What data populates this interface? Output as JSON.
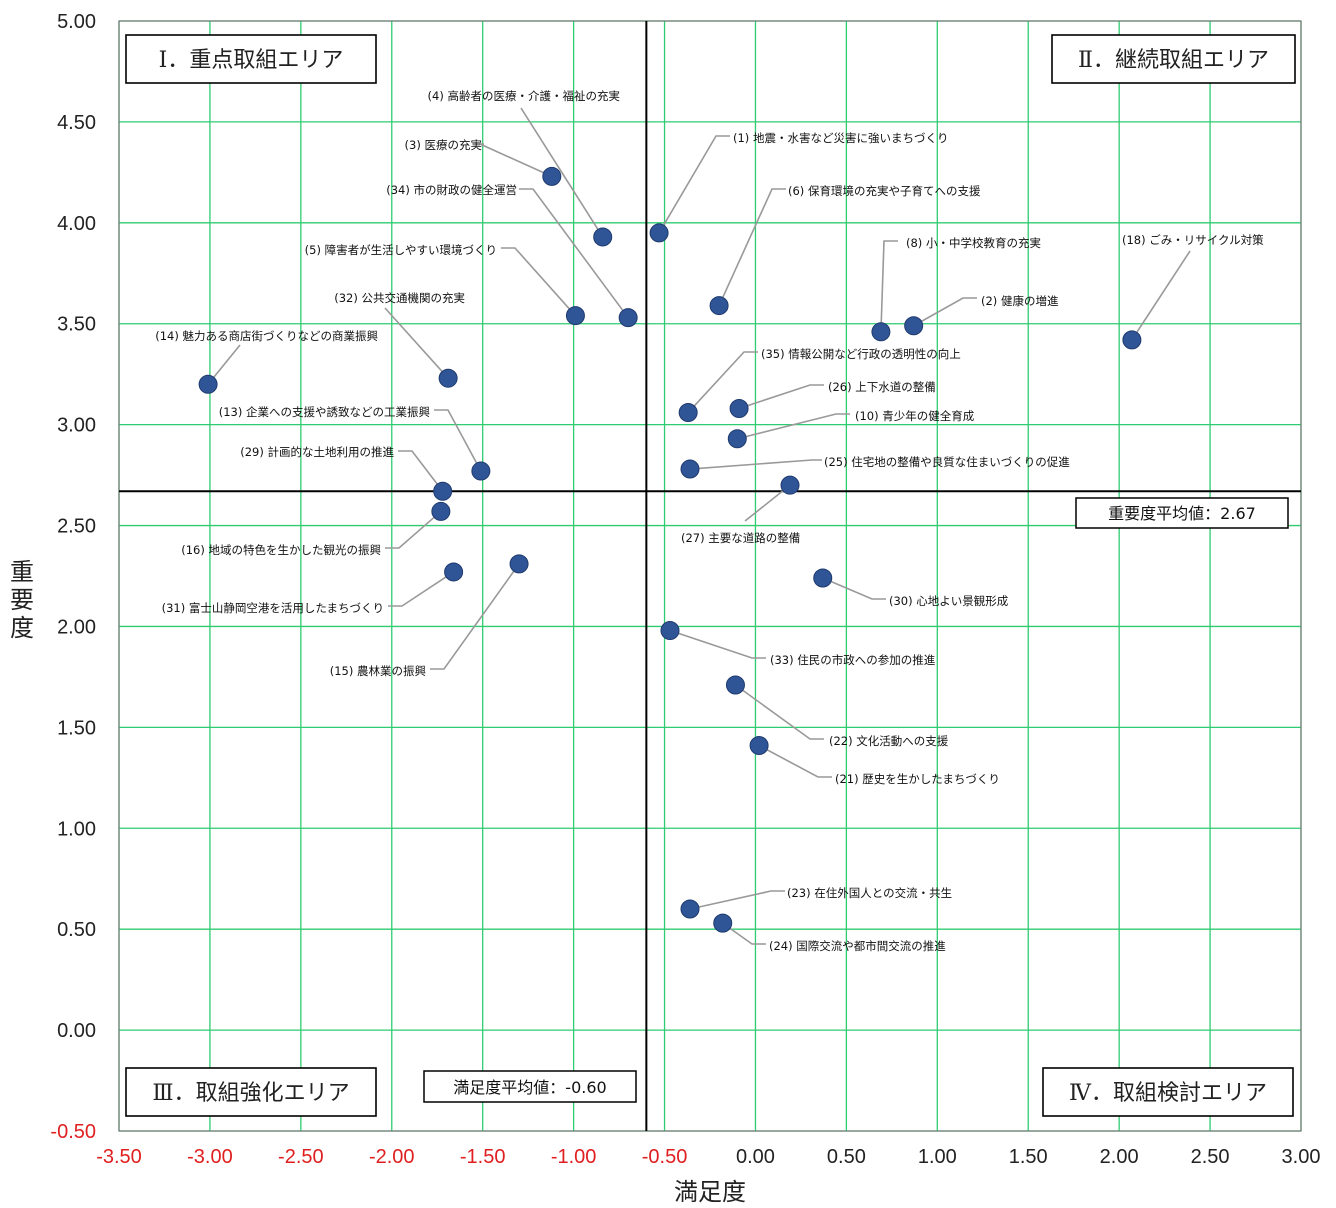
{
  "chart_data": {
    "type": "scatter",
    "xlabel": "満足度",
    "ylabel": "重要度",
    "xlim": [
      -3.5,
      3.0
    ],
    "ylim": [
      -0.5,
      5.0
    ],
    "x_ticks": [
      "-3.50",
      "-3.00",
      "-2.50",
      "-2.00",
      "-1.50",
      "-1.00",
      "-0.50",
      "0.00",
      "0.50",
      "1.00",
      "1.50",
      "2.00",
      "2.50",
      "3.00"
    ],
    "y_ticks": [
      "-0.50",
      "0.00",
      "0.50",
      "1.00",
      "1.50",
      "2.00",
      "2.50",
      "3.00",
      "3.50",
      "4.00",
      "4.50",
      "5.00"
    ],
    "grid": true,
    "colors": {
      "grid": "#2ecc71",
      "point": "#2f5597",
      "negative_tick": "#e02020",
      "leader": "#999999"
    },
    "reference_lines": {
      "x_mean": -0.6,
      "y_mean": 2.67
    },
    "mean_labels": {
      "importance": "重要度平均値：2.67",
      "satisfaction": "満足度平均値：-0.60"
    },
    "quadrants": [
      {
        "label": "Ⅰ．重点取組エリア",
        "position": "top-left"
      },
      {
        "label": "Ⅱ．継続取組エリア",
        "position": "top-right"
      },
      {
        "label": "Ⅲ．取組強化エリア",
        "position": "bottom-left"
      },
      {
        "label": "Ⅳ．取組検討エリア",
        "position": "bottom-right"
      }
    ],
    "points": [
      {
        "label": "(1) 地震・水害など災害に強いまちづくり",
        "x": -0.53,
        "y": 3.95
      },
      {
        "label": "(2) 健康の増進",
        "x": 0.87,
        "y": 3.49
      },
      {
        "label": "(3) 医療の充実",
        "x": -1.12,
        "y": 4.23
      },
      {
        "label": "(4) 高齢者の医療・介護・福祉の充実",
        "x": -0.84,
        "y": 3.93
      },
      {
        "label": "(5) 障害者が生活しやすい環境づくり",
        "x": -0.99,
        "y": 3.54
      },
      {
        "label": "(6) 保育環境の充実や子育てへの支援",
        "x": -0.2,
        "y": 3.59
      },
      {
        "label": "(8) 小・中学校教育の充実",
        "x": 0.69,
        "y": 3.46
      },
      {
        "label": "(10) 青少年の健全育成",
        "x": -0.1,
        "y": 2.93
      },
      {
        "label": "(13) 企業への支援や誘致などの工業振興",
        "x": -1.51,
        "y": 2.77
      },
      {
        "label": "(14) 魅力ある商店街づくりなどの商業振興",
        "x": -3.01,
        "y": 3.2
      },
      {
        "label": "(15) 農林業の振興",
        "x": -1.3,
        "y": 2.31
      },
      {
        "label": "(16) 地域の特色を生かした観光の振興",
        "x": -1.73,
        "y": 2.57
      },
      {
        "label": "(18) ごみ・リサイクル対策",
        "x": 2.07,
        "y": 3.42
      },
      {
        "label": "(21) 歴史を生かしたまちづくり",
        "x": 0.02,
        "y": 1.41
      },
      {
        "label": "(22) 文化活動への支援",
        "x": -0.11,
        "y": 1.71
      },
      {
        "label": "(23) 在住外国人との交流・共生",
        "x": -0.36,
        "y": 0.6
      },
      {
        "label": "(24) 国際交流や都市間交流の推進",
        "x": -0.18,
        "y": 0.53
      },
      {
        "label": "(25) 住宅地の整備や良質な住まいづくりの促進",
        "x": -0.36,
        "y": 2.78
      },
      {
        "label": "(26) 上下水道の整備",
        "x": -0.09,
        "y": 3.08
      },
      {
        "label": "(27) 主要な道路の整備",
        "x": 0.19,
        "y": 2.7
      },
      {
        "label": "(29) 計画的な土地利用の推進",
        "x": -1.72,
        "y": 2.67
      },
      {
        "label": "(30) 心地よい景観形成",
        "x": 0.37,
        "y": 2.24
      },
      {
        "label": "(31) 富士山静岡空港を活用したまちづくり",
        "x": -1.66,
        "y": 2.27
      },
      {
        "label": "(32) 公共交通機関の充実",
        "x": -1.69,
        "y": 3.23
      },
      {
        "label": "(33) 住民の市政への参加の推進",
        "x": -0.47,
        "y": 1.98
      },
      {
        "label": "(34) 市の財政の健全運営",
        "x": -0.7,
        "y": 3.53
      },
      {
        "label": "(35) 情報公開など行政の透明性の向上",
        "x": -0.37,
        "y": 3.06
      }
    ]
  }
}
